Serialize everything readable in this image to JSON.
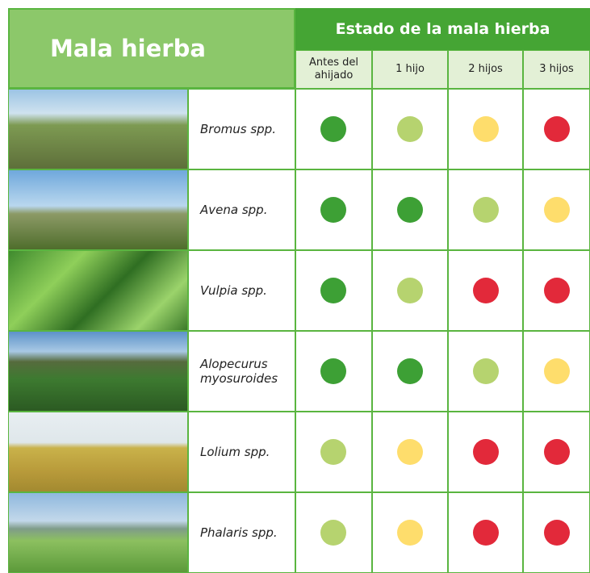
{
  "header": {
    "title": "Mala hierba",
    "state_title": "Estado de la mala hierba",
    "columns": [
      "Antes del ahijado",
      "1 hijo",
      "2 hijos",
      "3 hijos"
    ]
  },
  "rows": [
    {
      "name": "Bromus spp.",
      "states": [
        "#3da035",
        "#b6d36f",
        "#fedd6c",
        "#e2293a"
      ]
    },
    {
      "name": "Avena spp.",
      "states": [
        "#3da035",
        "#3da035",
        "#b6d36f",
        "#fedd6c"
      ]
    },
    {
      "name": "Vulpia spp.",
      "states": [
        "#3da035",
        "#b6d36f",
        "#e2293a",
        "#e2293a"
      ]
    },
    {
      "name": "Alopecurus myosuroides",
      "states": [
        "#3da035",
        "#3da035",
        "#b6d36f",
        "#fedd6c"
      ]
    },
    {
      "name": "Lolium spp.",
      "states": [
        "#b6d36f",
        "#fedd6c",
        "#e2293a",
        "#e2293a"
      ]
    },
    {
      "name": "Phalaris spp.",
      "states": [
        "#b6d36f",
        "#fedd6c",
        "#e2293a",
        "#e2293a"
      ]
    }
  ]
}
